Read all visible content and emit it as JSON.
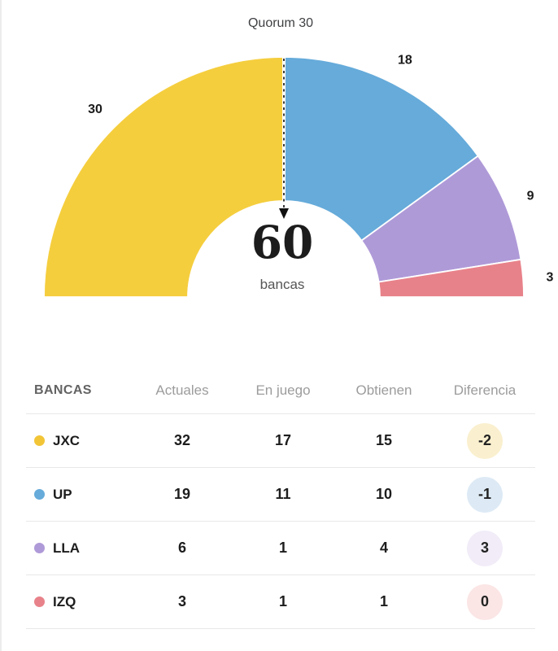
{
  "chart_data": {
    "type": "pie",
    "variant": "semicircle-donut",
    "title": "Quorum 30",
    "quorum_value": 30,
    "center_total": "60",
    "center_label": "bancas",
    "total_seats": 60,
    "segments": [
      {
        "label": "JXC",
        "value": 30,
        "color": "#F5CE3E"
      },
      {
        "label": "UP",
        "value": 18,
        "color": "#66ABDA"
      },
      {
        "label": "LLA",
        "value": 9,
        "color": "#AF9AD8"
      },
      {
        "label": "IZQ",
        "value": 3,
        "color": "#E8828A"
      }
    ],
    "legend_position": "none",
    "grid": false
  },
  "table": {
    "headers": {
      "party": "BANCAS",
      "col1": "Actuales",
      "col2": "En juego",
      "col3": "Obtienen",
      "col4": "Diferencia"
    },
    "rows": [
      {
        "party": "JXC",
        "dot_color": "#F2C537",
        "actuales": "32",
        "en_juego": "17",
        "obtienen": "15",
        "diferencia": "-2",
        "badge_bg": "#FAF0CF"
      },
      {
        "party": "UP",
        "dot_color": "#66ABDA",
        "actuales": "19",
        "en_juego": "11",
        "obtienen": "10",
        "diferencia": "-1",
        "badge_bg": "#DDEAF5"
      },
      {
        "party": "LLA",
        "dot_color": "#AF9AD8",
        "actuales": "6",
        "en_juego": "1",
        "obtienen": "4",
        "diferencia": "3",
        "badge_bg": "#F1ECF8"
      },
      {
        "party": "IZQ",
        "dot_color": "#E8828A",
        "actuales": "3",
        "en_juego": "1",
        "obtienen": "1",
        "diferencia": "0",
        "badge_bg": "#FBE5E5"
      }
    ]
  }
}
